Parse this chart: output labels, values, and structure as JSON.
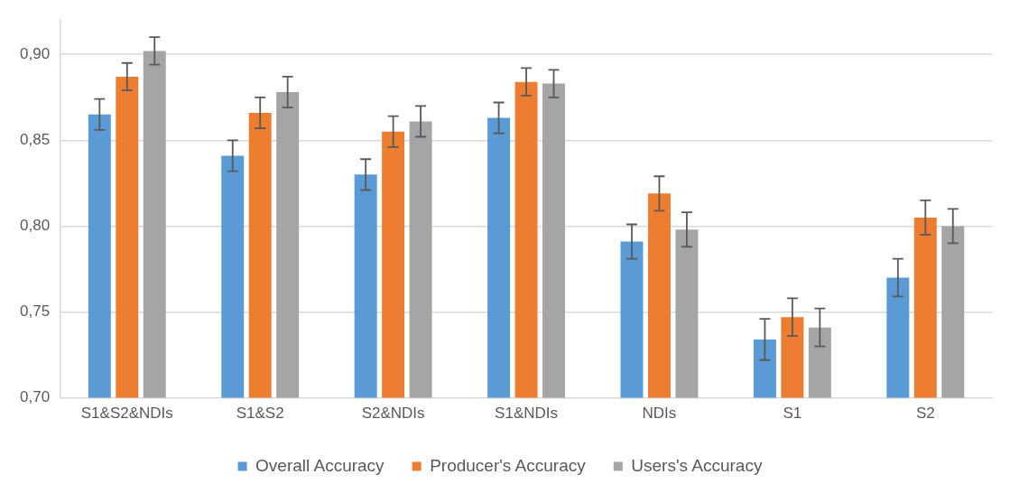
{
  "chart_data": {
    "type": "bar",
    "categories": [
      "S1&S2&NDIs",
      "S1&S2",
      "S2&NDIs",
      "S1&NDIs",
      "NDIs",
      "S1",
      "S2"
    ],
    "series": [
      {
        "name": "Overall Accuracy",
        "color": "#5b9bd5",
        "values": [
          0.865,
          0.841,
          0.83,
          0.863,
          0.791,
          0.734,
          0.77
        ],
        "errors": [
          0.009,
          0.009,
          0.009,
          0.009,
          0.01,
          0.012,
          0.011
        ]
      },
      {
        "name": "Producer's Accuracy",
        "color": "#ed7d31",
        "values": [
          0.887,
          0.866,
          0.855,
          0.884,
          0.819,
          0.747,
          0.805
        ],
        "errors": [
          0.008,
          0.009,
          0.009,
          0.008,
          0.01,
          0.011,
          0.01
        ]
      },
      {
        "name": "Users's Accuracy",
        "color": "#a5a5a5",
        "values": [
          0.902,
          0.878,
          0.861,
          0.883,
          0.798,
          0.741,
          0.8
        ],
        "errors": [
          0.008,
          0.009,
          0.009,
          0.008,
          0.01,
          0.011,
          0.01
        ]
      }
    ],
    "ylim": [
      0.7,
      0.92
    ],
    "yticks": [
      {
        "value": 0.7,
        "label": "0,70"
      },
      {
        "value": 0.75,
        "label": "0,75"
      },
      {
        "value": 0.8,
        "label": "0,80"
      },
      {
        "value": 0.85,
        "label": "0,85"
      },
      {
        "value": 0.9,
        "label": "0,90"
      }
    ],
    "grid": "y",
    "legend": "bottom"
  }
}
